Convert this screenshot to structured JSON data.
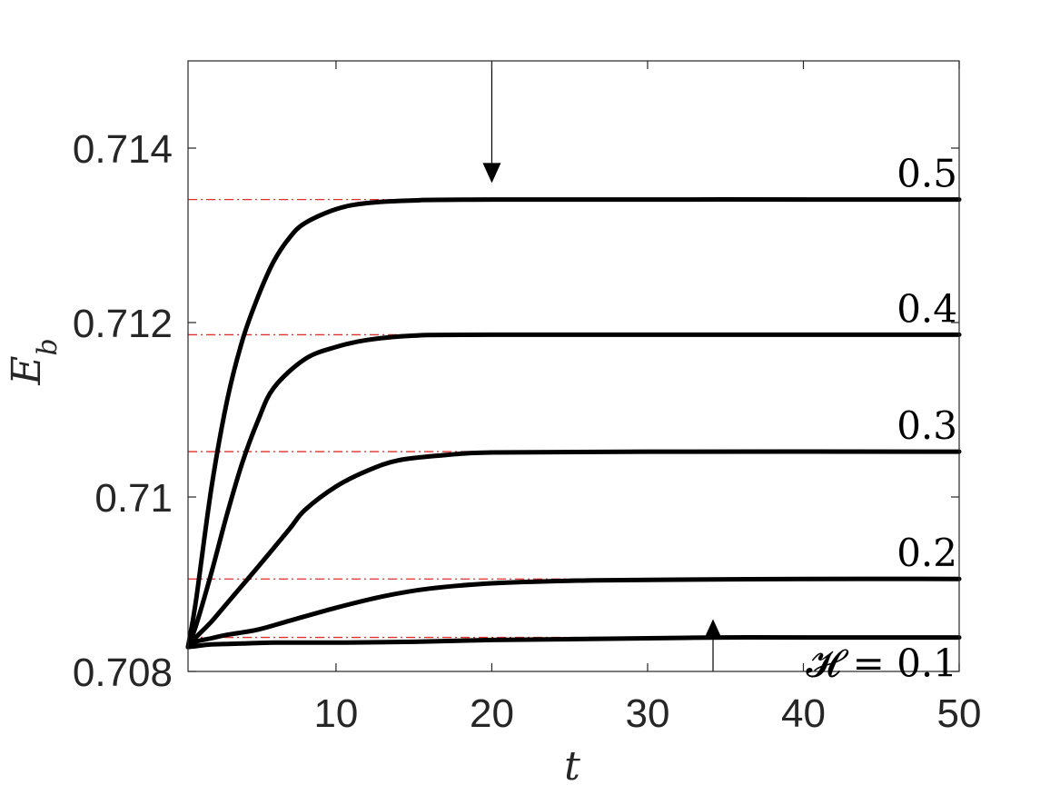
{
  "chart_data": {
    "type": "line",
    "xlabel": "t",
    "ylabel": "E_b",
    "xlim": [
      0.5,
      50
    ],
    "ylim": [
      0.708,
      0.715
    ],
    "xticks": [
      10,
      20,
      30,
      40,
      50
    ],
    "xtick_labels": [
      "10",
      "20",
      "30",
      "40",
      "50"
    ],
    "yticks": [
      0.708,
      0.71,
      0.712,
      0.714
    ],
    "ytick_labels": [
      "0.708",
      "0.71",
      "0.712",
      "0.714"
    ],
    "grid": false,
    "series": [
      {
        "name": "𝓗 = 0.1",
        "label": "𝓗 = 0.1",
        "asymptote": 0.70839,
        "points": [
          [
            0.5,
            0.70828
          ],
          [
            1,
            0.70829
          ],
          [
            2,
            0.70831
          ],
          [
            4,
            0.70832
          ],
          [
            6,
            0.70833
          ],
          [
            10,
            0.70833
          ],
          [
            15,
            0.70834
          ],
          [
            20,
            0.70836
          ],
          [
            25,
            0.70837
          ],
          [
            30,
            0.70838
          ],
          [
            35,
            0.70839
          ],
          [
            40,
            0.70839
          ],
          [
            50,
            0.70839
          ]
        ]
      },
      {
        "name": "0.2",
        "label": "0.2",
        "asymptote": 0.70906,
        "points": [
          [
            0.5,
            0.70828
          ],
          [
            1,
            0.70834
          ],
          [
            2,
            0.70838
          ],
          [
            3,
            0.70842
          ],
          [
            5,
            0.70848
          ],
          [
            7,
            0.70858
          ],
          [
            10,
            0.70873
          ],
          [
            13,
            0.70886
          ],
          [
            16,
            0.70895
          ],
          [
            20,
            0.70901
          ],
          [
            25,
            0.70904
          ],
          [
            30,
            0.70905
          ],
          [
            40,
            0.70906
          ],
          [
            50,
            0.70906
          ]
        ]
      },
      {
        "name": "0.3",
        "label": "0.3",
        "asymptote": 0.71052,
        "points": [
          [
            0.5,
            0.70828
          ],
          [
            1,
            0.70839
          ],
          [
            2,
            0.70857
          ],
          [
            3,
            0.70878
          ],
          [
            5,
            0.7092
          ],
          [
            7,
            0.70963
          ],
          [
            8,
            0.70985
          ],
          [
            10,
            0.71012
          ],
          [
            12,
            0.7103
          ],
          [
            14,
            0.71042
          ],
          [
            17,
            0.71048
          ],
          [
            20,
            0.71051
          ],
          [
            30,
            0.71052
          ],
          [
            50,
            0.71052
          ]
        ]
      },
      {
        "name": "0.4",
        "label": "0.4",
        "asymptote": 0.71186,
        "points": [
          [
            0.5,
            0.70828
          ],
          [
            1,
            0.70852
          ],
          [
            2,
            0.70913
          ],
          [
            3,
            0.7098
          ],
          [
            4,
            0.7104
          ],
          [
            5,
            0.71088
          ],
          [
            6,
            0.71125
          ],
          [
            8,
            0.71158
          ],
          [
            10,
            0.71172
          ],
          [
            12,
            0.7118
          ],
          [
            15,
            0.71185
          ],
          [
            20,
            0.71186
          ],
          [
            50,
            0.71186
          ]
        ]
      },
      {
        "name": "0.5",
        "label": "0.5",
        "asymptote": 0.71341,
        "points": [
          [
            0.5,
            0.70828
          ],
          [
            1,
            0.7088
          ],
          [
            2,
            0.7101
          ],
          [
            3,
            0.7111
          ],
          [
            4,
            0.7118
          ],
          [
            5,
            0.7123
          ],
          [
            6,
            0.7127
          ],
          [
            7,
            0.71297
          ],
          [
            8,
            0.71314
          ],
          [
            10,
            0.7133
          ],
          [
            12,
            0.71337
          ],
          [
            15,
            0.7134
          ],
          [
            20,
            0.71341
          ],
          [
            50,
            0.71341
          ]
        ]
      }
    ],
    "annotations": [
      {
        "type": "arrow",
        "direction": "down",
        "x": 20,
        "y_from": 0.715,
        "y_to": 0.7136
      },
      {
        "type": "arrow",
        "direction": "up",
        "x": 34.2,
        "y_from": 0.708,
        "y_to": 0.7086
      }
    ],
    "colors": {
      "curve": "#000000",
      "asymptote": "#e0302b",
      "axis": "#262626"
    }
  }
}
